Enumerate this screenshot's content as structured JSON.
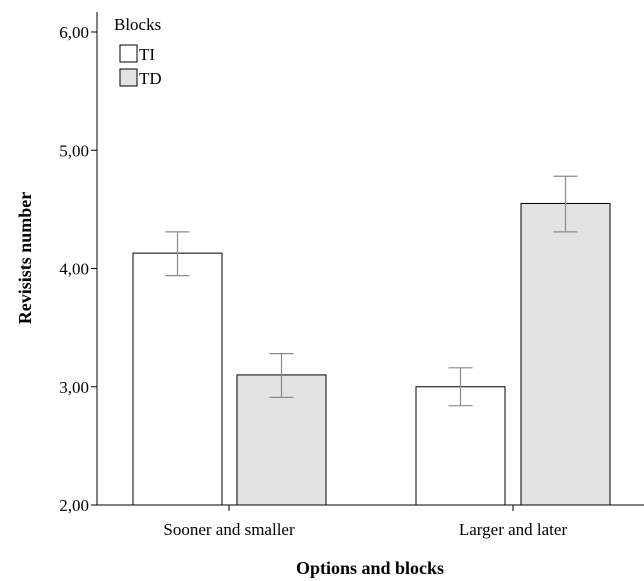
{
  "chart_data": {
    "type": "bar",
    "xlabel": "Options and blocks",
    "ylabel": "Revisists number",
    "ylim": [
      2,
      6
    ],
    "yticks": [
      "2,00",
      "3,00",
      "4,00",
      "5,00",
      "6,00"
    ],
    "categories": [
      "Sooner and smaller",
      "Larger and later"
    ],
    "legend": {
      "title": "Blocks",
      "position": "top-left"
    },
    "series": [
      {
        "name": "TI",
        "color": "#ffffff",
        "values": [
          4.13,
          3.0
        ],
        "err_low": [
          3.94,
          2.84
        ],
        "err_high": [
          4.31,
          3.16
        ]
      },
      {
        "name": "TD",
        "color": "#e3e3e3",
        "values": [
          3.1,
          4.55
        ],
        "err_low": [
          2.91,
          4.31
        ],
        "err_high": [
          3.28,
          4.78
        ]
      }
    ]
  }
}
